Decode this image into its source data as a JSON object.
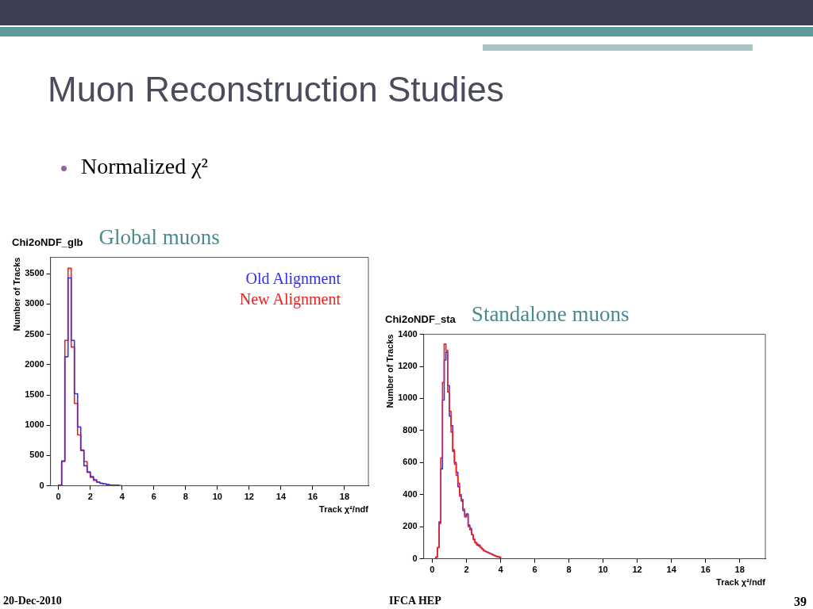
{
  "chart_data": [
    {
      "type": "histogram",
      "title": "Chi2oNDF_glb",
      "subtitle": "Global muons",
      "xlabel": "Track χ²/ndf",
      "ylabel": "Number of Tracks",
      "annotations": [
        "Muon Reconstruction Studies",
        "Normalized χ²"
      ],
      "legend": "top right",
      "grid": false,
      "xlim": [
        -0.5,
        19.5
      ],
      "xticks": [
        0,
        2,
        4,
        6,
        8,
        10,
        12,
        14,
        16,
        18
      ],
      "ylim": [
        0,
        3770
      ],
      "yticks": [
        0,
        500,
        1000,
        1500,
        2000,
        2500,
        3000,
        3500
      ],
      "bins": [
        0,
        0.2,
        0.4,
        0.6,
        0.8,
        1.0,
        1.2,
        1.4,
        1.6,
        1.8,
        2.0,
        2.2,
        2.4,
        2.6,
        2.8,
        3.0,
        3.2,
        3.4,
        3.6,
        3.8,
        4.0
      ],
      "series": [
        {
          "name": "Old Alignment",
          "color": "#3030f0",
          "values": [
            10,
            410,
            2130,
            3430,
            2400,
            1520,
            970,
            590,
            330,
            230,
            150,
            100,
            60,
            40,
            30,
            20,
            10,
            10,
            10,
            0
          ]
        },
        {
          "name": "New Alignment",
          "color": "#f02020",
          "values": [
            10,
            400,
            2400,
            3590,
            2290,
            1360,
            840,
            580,
            400,
            220,
            140,
            90,
            60,
            40,
            30,
            20,
            10,
            10,
            10,
            0
          ]
        }
      ]
    },
    {
      "type": "histogram",
      "title": "Chi2oNDF_sta",
      "subtitle": "Standalone muons",
      "xlabel": "Track χ²/ndf",
      "ylabel": "Number of Tracks",
      "annotations": [
        "20-Dec-2010",
        "IFCA HEP",
        "39"
      ],
      "grid": false,
      "xlim": [
        -0.5,
        19.5
      ],
      "xticks": [
        0,
        2,
        4,
        6,
        8,
        10,
        12,
        14,
        16,
        18
      ],
      "ylim": [
        0,
        1400
      ],
      "yticks": [
        0,
        200,
        400,
        600,
        800,
        1000,
        1200,
        1400
      ],
      "bins": [
        0.2,
        0.3,
        0.4,
        0.5,
        0.6,
        0.7,
        0.8,
        0.9,
        1.0,
        1.1,
        1.2,
        1.3,
        1.4,
        1.5,
        1.6,
        1.7,
        1.8,
        1.9,
        2.0,
        2.1,
        2.2,
        2.3,
        2.4,
        2.5,
        2.6,
        2.7,
        2.8,
        2.9,
        3.0,
        3.1,
        3.2,
        3.3,
        3.4,
        3.5,
        3.6,
        3.7,
        3.8,
        3.9,
        4.0
      ],
      "series": [
        {
          "color": "#f02020",
          "values": [
            10,
            70,
            220,
            630,
            1100,
            1340,
            1300,
            1040,
            920,
            790,
            680,
            590,
            520,
            470,
            390,
            370,
            310,
            260,
            270,
            200,
            180,
            150,
            120,
            100,
            85,
            85,
            70,
            60,
            50,
            45,
            40,
            35,
            30,
            25,
            20,
            15,
            12,
            10
          ]
        },
        {
          "color": "#3030f0",
          "values": [
            10,
            70,
            230,
            560,
            990,
            1240,
            1290,
            1080,
            890,
            830,
            670,
            600,
            540,
            450,
            400,
            360,
            300,
            270,
            280,
            210,
            190,
            150,
            120,
            100,
            90,
            80,
            70,
            60,
            50,
            45,
            40,
            35,
            30,
            25,
            20,
            15,
            12,
            10
          ]
        }
      ]
    }
  ]
}
